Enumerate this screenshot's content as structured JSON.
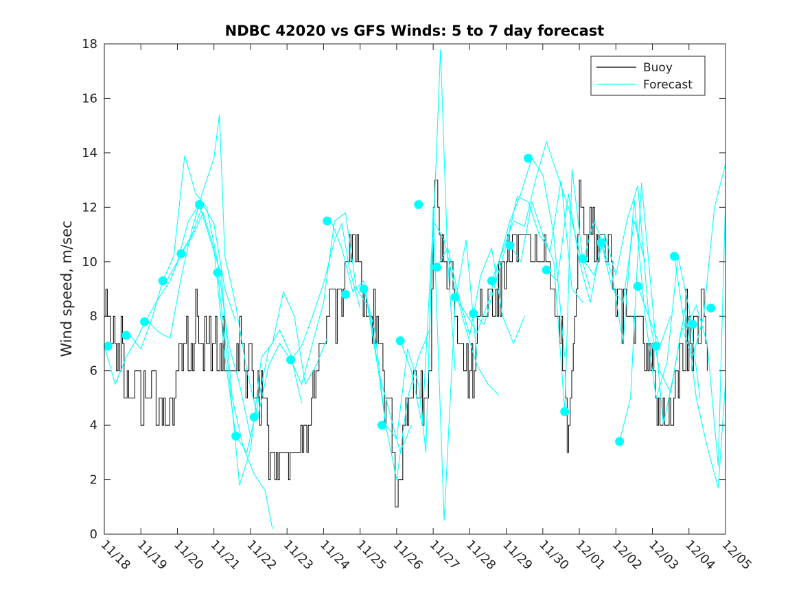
{
  "chart_data": {
    "type": "line",
    "title": "NDBC 42020 vs GFS Winds: 5 to 7 day forecast",
    "xlabel": "",
    "ylabel": "Wind speed, m/sec",
    "xlim": [
      0,
      17
    ],
    "ylim": [
      0,
      18
    ],
    "x_tick_labels": [
      "11/18",
      "11/19",
      "11/20",
      "11/21",
      "11/22",
      "11/23",
      "11/24",
      "11/25",
      "11/26",
      "11/27",
      "11/28",
      "11/29",
      "11/30",
      "12/01",
      "12/02",
      "12/03",
      "12/04",
      "12/05"
    ],
    "y_ticks": [
      0,
      2,
      4,
      6,
      8,
      10,
      12,
      14,
      16,
      18
    ],
    "legend": [
      {
        "label": "Buoy",
        "color": "#000000"
      },
      {
        "label": "Forecast",
        "color": "#00ffff"
      }
    ],
    "legend_position": "top-right",
    "colors": {
      "buoy": "#000000",
      "forecast": "#00ffff",
      "marker": "#00ffff"
    },
    "buoy_anchors": [
      [
        0.0,
        8
      ],
      [
        0.1,
        8
      ],
      [
        0.3,
        7
      ],
      [
        0.5,
        6
      ],
      [
        0.8,
        5
      ],
      [
        1.2,
        5
      ],
      [
        1.5,
        5
      ],
      [
        1.7,
        4
      ],
      [
        1.9,
        5
      ],
      [
        2.1,
        7
      ],
      [
        2.4,
        7
      ],
      [
        2.7,
        7
      ],
      [
        3.0,
        7
      ],
      [
        3.3,
        7
      ],
      [
        3.5,
        6
      ],
      [
        3.7,
        7
      ],
      [
        3.9,
        6
      ],
      [
        4.1,
        6
      ],
      [
        4.3,
        5
      ],
      [
        4.5,
        4
      ],
      [
        4.6,
        3
      ],
      [
        4.8,
        2.5
      ],
      [
        5.0,
        2.5
      ],
      [
        5.2,
        3
      ],
      [
        5.4,
        3.5
      ],
      [
        5.6,
        4
      ],
      [
        5.8,
        6
      ],
      [
        6.0,
        7
      ],
      [
        6.2,
        8
      ],
      [
        6.4,
        9
      ],
      [
        6.6,
        10
      ],
      [
        6.8,
        11
      ],
      [
        6.9,
        10
      ],
      [
        7.1,
        9
      ],
      [
        7.3,
        8
      ],
      [
        7.5,
        7
      ],
      [
        7.6,
        6
      ],
      [
        7.8,
        5
      ],
      [
        7.9,
        3
      ],
      [
        8.0,
        1
      ],
      [
        8.1,
        1.5
      ],
      [
        8.2,
        4
      ],
      [
        8.4,
        5
      ],
      [
        8.6,
        5.5
      ],
      [
        8.8,
        4
      ],
      [
        8.9,
        6
      ],
      [
        9.0,
        12
      ],
      [
        9.1,
        12.5
      ],
      [
        9.3,
        10
      ],
      [
        9.5,
        9
      ],
      [
        9.7,
        7
      ],
      [
        9.9,
        6
      ],
      [
        10.1,
        6
      ],
      [
        10.2,
        7.5
      ],
      [
        10.4,
        8
      ],
      [
        10.6,
        8.5
      ],
      [
        10.8,
        9
      ],
      [
        11.0,
        10
      ],
      [
        11.2,
        10.5
      ],
      [
        11.4,
        11
      ],
      [
        11.6,
        11
      ],
      [
        11.8,
        10.5
      ],
      [
        12.0,
        10
      ],
      [
        12.2,
        9.5
      ],
      [
        12.4,
        8
      ],
      [
        12.6,
        5
      ],
      [
        12.7,
        3
      ],
      [
        12.8,
        6
      ],
      [
        12.9,
        9
      ],
      [
        13.0,
        12
      ],
      [
        13.2,
        11
      ],
      [
        13.4,
        11
      ],
      [
        13.6,
        11
      ],
      [
        13.8,
        10
      ],
      [
        14.0,
        9
      ],
      [
        14.2,
        9
      ],
      [
        14.4,
        8.5
      ],
      [
        14.6,
        8
      ],
      [
        14.8,
        7.5
      ],
      [
        15.0,
        6
      ],
      [
        15.2,
        4
      ],
      [
        15.4,
        4
      ],
      [
        15.6,
        5
      ],
      [
        15.8,
        6.5
      ],
      [
        16.0,
        7
      ],
      [
        16.2,
        7.5
      ],
      [
        16.4,
        8
      ],
      [
        16.5,
        7
      ]
    ],
    "forecast_runs": [
      [
        [
          0.0,
          6.9
        ],
        [
          0.3,
          5.5
        ],
        [
          0.6,
          6.5
        ],
        [
          0.9,
          7.2
        ],
        [
          1.2,
          8.0
        ],
        [
          1.5,
          8.7
        ],
        [
          1.8,
          9.3
        ],
        [
          2.1,
          10.3
        ],
        [
          2.4,
          11.0
        ],
        [
          2.7,
          12.1
        ],
        [
          3.0,
          11.4
        ],
        [
          3.3,
          9.0
        ],
        [
          3.6,
          7.8
        ]
      ],
      [
        [
          0.7,
          7.3
        ],
        [
          1.0,
          6.8
        ],
        [
          1.3,
          7.9
        ],
        [
          1.6,
          9.3
        ],
        [
          1.9,
          10.2
        ],
        [
          2.2,
          13.9
        ],
        [
          2.5,
          12.5
        ],
        [
          2.8,
          12.0
        ],
        [
          3.1,
          10.0
        ],
        [
          3.4,
          7.0
        ],
        [
          3.7,
          5.5
        ],
        [
          4.0,
          3.6
        ]
      ],
      [
        [
          1.2,
          7.8
        ],
        [
          1.5,
          7.4
        ],
        [
          1.8,
          7.2
        ],
        [
          2.1,
          9.4
        ],
        [
          2.4,
          11.2
        ],
        [
          2.7,
          12.6
        ],
        [
          3.0,
          13.8
        ],
        [
          3.15,
          15.4
        ],
        [
          3.3,
          10.2
        ],
        [
          3.6,
          8.4
        ],
        [
          3.9,
          6.0
        ],
        [
          4.2,
          4.3
        ]
      ],
      [
        [
          1.7,
          9.3
        ],
        [
          2.0,
          10.0
        ],
        [
          2.3,
          11.5
        ],
        [
          2.6,
          12.1
        ],
        [
          2.9,
          10.8
        ],
        [
          3.2,
          9.5
        ],
        [
          3.5,
          5.0
        ],
        [
          3.8,
          3.2
        ],
        [
          4.1,
          2.2
        ],
        [
          4.4,
          1.6
        ],
        [
          4.6,
          0.2
        ]
      ],
      [
        [
          2.1,
          10.3
        ],
        [
          2.4,
          10.9
        ],
        [
          2.7,
          11.8
        ],
        [
          3.0,
          10.5
        ],
        [
          3.3,
          6.5
        ],
        [
          3.6,
          3.6
        ],
        [
          3.9,
          3.0
        ],
        [
          4.2,
          4.8
        ],
        [
          4.5,
          6.8
        ],
        [
          4.8,
          7.5
        ],
        [
          5.1,
          6.6
        ],
        [
          5.4,
          4.8
        ]
      ],
      [
        [
          3.1,
          9.6
        ],
        [
          3.4,
          6.0
        ],
        [
          3.7,
          1.8
        ],
        [
          4.0,
          3.1
        ],
        [
          4.3,
          6.5
        ],
        [
          4.6,
          7.0
        ],
        [
          4.9,
          8.9
        ],
        [
          5.2,
          8.0
        ],
        [
          5.5,
          5.5
        ],
        [
          5.8,
          6.2
        ],
        [
          6.1,
          7.2
        ]
      ],
      [
        [
          4.2,
          4.3
        ],
        [
          4.5,
          6.2
        ],
        [
          4.8,
          7.0
        ],
        [
          5.1,
          6.4
        ],
        [
          5.4,
          6.9
        ],
        [
          5.7,
          8.0
        ],
        [
          6.0,
          9.2
        ],
        [
          6.3,
          10.8
        ],
        [
          6.5,
          11.4
        ],
        [
          6.7,
          9.8
        ],
        [
          7.0,
          8.3
        ]
      ],
      [
        [
          5.1,
          6.4
        ],
        [
          5.4,
          5.5
        ],
        [
          5.7,
          7.0
        ],
        [
          6.0,
          8.5
        ],
        [
          6.3,
          11.5
        ],
        [
          6.6,
          11.8
        ],
        [
          6.9,
          9.0
        ],
        [
          7.2,
          8.4
        ],
        [
          7.5,
          6.0
        ],
        [
          7.8,
          4.5
        ],
        [
          8.1,
          3.0
        ],
        [
          8.4,
          4.0
        ]
      ],
      [
        [
          6.2,
          11.5
        ],
        [
          6.5,
          10.5
        ],
        [
          6.8,
          8.9
        ],
        [
          7.1,
          9.3
        ],
        [
          7.4,
          7.0
        ],
        [
          7.7,
          4.0
        ],
        [
          8.0,
          2.0
        ],
        [
          8.3,
          5.0
        ],
        [
          8.6,
          6.5
        ],
        [
          8.9,
          7.5
        ],
        [
          9.2,
          17.8
        ],
        [
          9.4,
          10.0
        ],
        [
          9.6,
          6.0
        ]
      ],
      [
        [
          7.1,
          9.0
        ],
        [
          7.4,
          7.5
        ],
        [
          7.7,
          4.0
        ],
        [
          8.0,
          3.5
        ],
        [
          8.3,
          6.8
        ],
        [
          8.6,
          5.5
        ],
        [
          8.8,
          3.0
        ],
        [
          9.0,
          12.0
        ],
        [
          9.3,
          0.5
        ],
        [
          9.6,
          8.5
        ],
        [
          9.9,
          10.8
        ],
        [
          10.2,
          6.5
        ]
      ],
      [
        [
          8.1,
          7.1
        ],
        [
          8.4,
          6.0
        ],
        [
          8.7,
          4.0
        ],
        [
          9.0,
          11.5
        ],
        [
          9.3,
          10.8
        ],
        [
          9.6,
          9.0
        ],
        [
          9.9,
          7.5
        ],
        [
          10.2,
          6.2
        ],
        [
          10.5,
          5.5
        ],
        [
          10.8,
          5.1
        ]
      ],
      [
        [
          9.1,
          9.8
        ],
        [
          9.4,
          10.5
        ],
        [
          9.7,
          8.7
        ],
        [
          10.0,
          7.3
        ],
        [
          10.3,
          9.5
        ],
        [
          10.6,
          10.5
        ],
        [
          10.9,
          8.0
        ],
        [
          11.2,
          7.0
        ],
        [
          11.5,
          8.0
        ]
      ],
      [
        [
          9.6,
          8.7
        ],
        [
          9.9,
          8.1
        ],
        [
          10.2,
          7.4
        ],
        [
          10.5,
          8.5
        ],
        [
          10.8,
          10.0
        ],
        [
          11.1,
          11.5
        ],
        [
          11.4,
          12.5
        ],
        [
          11.7,
          13.8
        ],
        [
          12.0,
          13.2
        ],
        [
          12.3,
          11.0
        ],
        [
          12.6,
          6.5
        ]
      ],
      [
        [
          10.1,
          8.1
        ],
        [
          10.4,
          7.7
        ],
        [
          10.7,
          9.2
        ],
        [
          11.0,
          10.6
        ],
        [
          11.3,
          12.4
        ],
        [
          11.6,
          12.2
        ],
        [
          11.9,
          11.0
        ],
        [
          12.2,
          10.4
        ],
        [
          12.5,
          13.0
        ],
        [
          12.8,
          9.0
        ],
        [
          13.1,
          8.5
        ]
      ],
      [
        [
          10.6,
          9.3
        ],
        [
          10.9,
          10.4
        ],
        [
          11.2,
          11.5
        ],
        [
          11.5,
          11.3
        ],
        [
          11.8,
          13.0
        ],
        [
          12.1,
          14.4
        ],
        [
          12.4,
          13.2
        ],
        [
          12.7,
          12.0
        ],
        [
          13.0,
          10.4
        ],
        [
          13.3,
          9.0
        ]
      ],
      [
        [
          11.1,
          10.6
        ],
        [
          11.4,
          10.0
        ],
        [
          11.7,
          12.2
        ],
        [
          12.0,
          11.0
        ],
        [
          12.3,
          10.0
        ],
        [
          12.6,
          4.5
        ],
        [
          12.8,
          13.4
        ],
        [
          13.1,
          10.0
        ],
        [
          13.4,
          11.5
        ],
        [
          13.7,
          10.5
        ]
      ],
      [
        [
          12.1,
          9.7
        ],
        [
          12.4,
          9.3
        ],
        [
          12.7,
          12.5
        ],
        [
          13.0,
          10.0
        ],
        [
          13.3,
          8.5
        ],
        [
          13.6,
          10.7
        ],
        [
          13.9,
          9.0
        ],
        [
          14.2,
          8.5
        ],
        [
          14.5,
          11.5
        ],
        [
          14.8,
          10.0
        ]
      ],
      [
        [
          13.1,
          10.1
        ],
        [
          13.4,
          9.5
        ],
        [
          13.7,
          11.0
        ],
        [
          14.0,
          9.5
        ],
        [
          14.3,
          11.5
        ],
        [
          14.6,
          12.8
        ],
        [
          14.9,
          8.0
        ],
        [
          15.2,
          6.9
        ],
        [
          15.5,
          8.0
        ]
      ],
      [
        [
          13.6,
          10.7
        ],
        [
          13.9,
          9.5
        ],
        [
          14.2,
          7.0
        ],
        [
          14.5,
          12.3
        ],
        [
          14.8,
          8.0
        ],
        [
          15.1,
          5.0
        ],
        [
          15.4,
          6.3
        ],
        [
          15.7,
          10.2
        ],
        [
          16.0,
          8.3
        ],
        [
          16.3,
          5.0
        ]
      ],
      [
        [
          14.1,
          3.4
        ],
        [
          14.4,
          5.0
        ],
        [
          14.7,
          12.9
        ],
        [
          15.0,
          8.5
        ],
        [
          15.3,
          4.0
        ],
        [
          15.6,
          6.0
        ],
        [
          15.9,
          8.3
        ],
        [
          16.2,
          5.0
        ],
        [
          16.5,
          3.2
        ],
        [
          16.8,
          1.7
        ],
        [
          17.0,
          5.6
        ]
      ],
      [
        [
          14.6,
          9.1
        ],
        [
          14.9,
          8.0
        ],
        [
          15.2,
          6.0
        ],
        [
          15.5,
          5.2
        ],
        [
          15.8,
          7.6
        ],
        [
          16.1,
          6.5
        ],
        [
          16.4,
          8.0
        ],
        [
          16.7,
          12.0
        ],
        [
          17.0,
          13.6
        ]
      ],
      [
        [
          15.6,
          10.2
        ],
        [
          15.9,
          7.5
        ],
        [
          16.2,
          8.4
        ],
        [
          16.5,
          7.0
        ],
        [
          16.8,
          2.5
        ],
        [
          17.0,
          12.3
        ]
      ]
    ],
    "forecast_markers": [
      [
        0.1,
        6.9
      ],
      [
        0.6,
        7.3
      ],
      [
        1.1,
        7.8
      ],
      [
        1.6,
        9.3
      ],
      [
        2.1,
        10.3
      ],
      [
        2.6,
        12.1
      ],
      [
        3.1,
        9.6
      ],
      [
        3.6,
        3.6
      ],
      [
        4.1,
        4.3
      ],
      [
        5.1,
        6.4
      ],
      [
        6.1,
        11.5
      ],
      [
        6.6,
        8.8
      ],
      [
        7.1,
        9.0
      ],
      [
        7.6,
        4.0
      ],
      [
        8.1,
        7.1
      ],
      [
        8.6,
        12.1
      ],
      [
        9.1,
        9.8
      ],
      [
        9.6,
        8.7
      ],
      [
        10.1,
        8.1
      ],
      [
        10.6,
        9.3
      ],
      [
        11.1,
        10.6
      ],
      [
        11.6,
        13.8
      ],
      [
        12.1,
        9.7
      ],
      [
        12.6,
        4.5
      ],
      [
        13.1,
        10.1
      ],
      [
        13.6,
        10.7
      ],
      [
        14.1,
        3.4
      ],
      [
        14.6,
        9.1
      ],
      [
        15.1,
        6.9
      ],
      [
        15.6,
        10.2
      ],
      [
        16.1,
        7.7
      ],
      [
        16.6,
        8.3
      ]
    ]
  }
}
